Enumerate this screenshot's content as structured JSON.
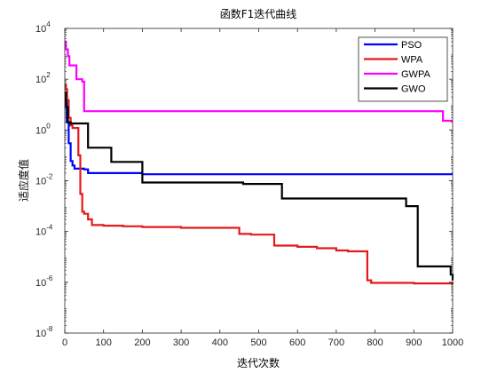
{
  "chart_data": {
    "type": "line",
    "title": "函数F1迭代曲线",
    "xlabel": "迭代次数",
    "ylabel": "适应度值",
    "xlim": [
      0,
      1000
    ],
    "ylim": [
      1e-08,
      10000.0
    ],
    "yscale": "log",
    "xticks": [
      0,
      100,
      200,
      300,
      400,
      500,
      600,
      700,
      800,
      900,
      1000
    ],
    "yticks": [
      {
        "base": "10",
        "exp": "-8",
        "value": 1e-08
      },
      {
        "base": "10",
        "exp": "-6",
        "value": 1e-06
      },
      {
        "base": "10",
        "exp": "-4",
        "value": 0.0001
      },
      {
        "base": "10",
        "exp": "-2",
        "value": 0.01
      },
      {
        "base": "10",
        "exp": "0",
        "value": 1
      },
      {
        "base": "10",
        "exp": "2",
        "value": 100.0
      },
      {
        "base": "10",
        "exp": "4",
        "value": 10000.0
      }
    ],
    "legend_position": "top-right",
    "grid": false,
    "series": [
      {
        "name": "PSO",
        "color": "#0000ff",
        "x": [
          0,
          5,
          10,
          15,
          20,
          25,
          30,
          50,
          60,
          200,
          1000
        ],
        "y": [
          15,
          2,
          0.3,
          0.06,
          0.04,
          0.03,
          0.03,
          0.028,
          0.02,
          0.018,
          0.018
        ]
      },
      {
        "name": "WPA",
        "color": "#e41a1c",
        "x": [
          0,
          3,
          6,
          10,
          15,
          20,
          30,
          35,
          40,
          45,
          50,
          60,
          70,
          100,
          150,
          200,
          300,
          450,
          480,
          540,
          600,
          650,
          700,
          730,
          780,
          790,
          800,
          900,
          1000
        ],
        "y": [
          60,
          40,
          15,
          3,
          1.5,
          1.2,
          1.2,
          0.1,
          0.003,
          0.0006,
          0.0005,
          0.0003,
          0.00018,
          0.00017,
          0.00016,
          0.00015,
          0.00014,
          8e-05,
          7.5e-05,
          2.8e-05,
          2.5e-05,
          2.2e-05,
          1.8e-05,
          1.65e-05,
          1.2e-06,
          9.5e-07,
          9.5e-07,
          9e-07,
          8.5e-07
        ]
      },
      {
        "name": "GWPA",
        "color": "#ff00ff",
        "x": [
          0,
          3,
          8,
          12,
          20,
          30,
          45,
          50,
          960,
          975,
          1000
        ],
        "y": [
          3000,
          1500,
          800,
          350,
          350,
          100,
          80,
          5.5,
          5.5,
          2.3,
          2.3
        ]
      },
      {
        "name": "GWO",
        "color": "#000000",
        "x": [
          0,
          3,
          8,
          15,
          30,
          55,
          60,
          120,
          200,
          430,
          460,
          555,
          560,
          880,
          910,
          990,
          995,
          1000
        ],
        "y": [
          30,
          8,
          2,
          1.8,
          1.8,
          1.8,
          0.2,
          0.055,
          0.0085,
          0.0085,
          0.0075,
          0.0075,
          0.002,
          0.001,
          4.2e-06,
          4.2e-06,
          2e-06,
          1.2e-06
        ]
      }
    ]
  }
}
